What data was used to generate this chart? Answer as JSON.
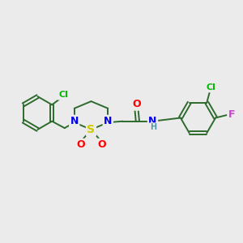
{
  "background_color": "#ebebeb",
  "bond_color": "#2d6b2d",
  "atom_colors": {
    "N": "#0000ee",
    "S": "#cccc00",
    "O": "#ff0000",
    "Cl": "#00bb00",
    "F": "#cc44cc",
    "C": "#2d6b2d",
    "H": "#5599aa"
  },
  "figsize": [
    3.0,
    3.0
  ],
  "dpi": 100
}
